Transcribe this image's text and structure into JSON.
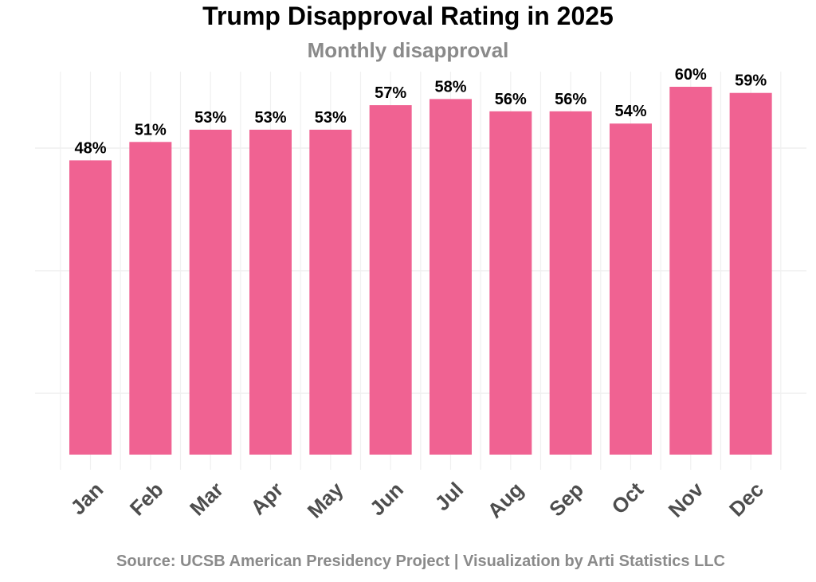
{
  "chart_data": {
    "type": "bar",
    "title": "Trump Disapproval Rating in 2025",
    "subtitle": "Monthly disapproval",
    "caption": "Source: UCSB American Presidency Project | Visualization by Arti Statistics LLC",
    "categories": [
      "Jan",
      "Feb",
      "Mar",
      "Apr",
      "May",
      "Jun",
      "Jul",
      "Aug",
      "Sep",
      "Oct",
      "Nov",
      "Dec"
    ],
    "values": [
      48,
      51,
      53,
      53,
      53,
      57,
      58,
      56,
      56,
      54,
      60,
      59
    ],
    "labels": [
      "48%",
      "51%",
      "53%",
      "53%",
      "53%",
      "57%",
      "58%",
      "56%",
      "56%",
      "54%",
      "60%",
      "59%"
    ],
    "xlabel": "",
    "ylabel": "",
    "ylim": [
      0,
      60
    ],
    "grid": true,
    "legend": "none",
    "bar_color": "#f06292"
  }
}
